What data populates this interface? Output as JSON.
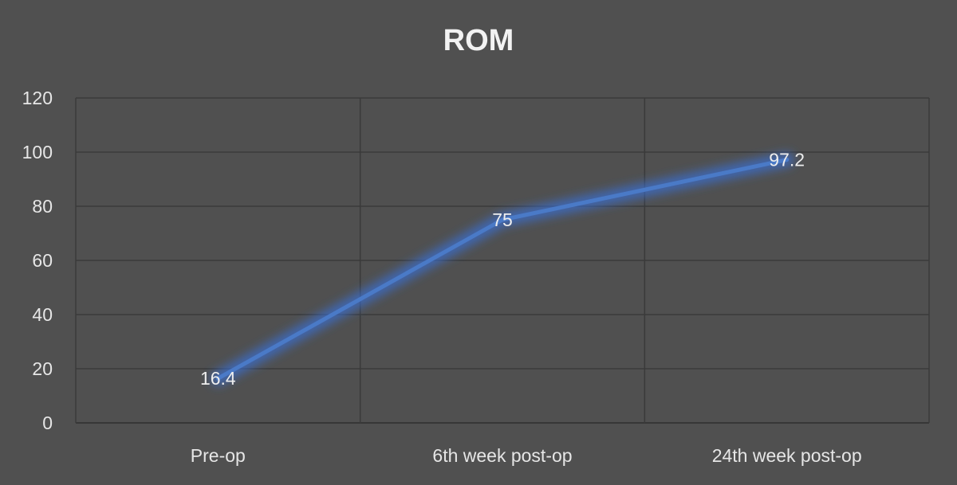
{
  "chart_data": {
    "type": "line",
    "title": "ROM",
    "xlabel": "",
    "ylabel": "",
    "categories": [
      "Pre-op",
      "6th week post-op",
      "24th week post-op"
    ],
    "series": [
      {
        "values": [
          16.4,
          75,
          97.2
        ],
        "data_labels": [
          "16.4",
          "75",
          "97.2"
        ],
        "color": "#4a7ac7"
      }
    ],
    "ylim": [
      0,
      120
    ],
    "yticks": [
      0,
      20,
      40,
      60,
      80,
      100,
      120
    ],
    "ytick_labels": [
      "0",
      "20",
      "40",
      "60",
      "80",
      "100",
      "120"
    ],
    "grid": true,
    "legend": "none"
  }
}
